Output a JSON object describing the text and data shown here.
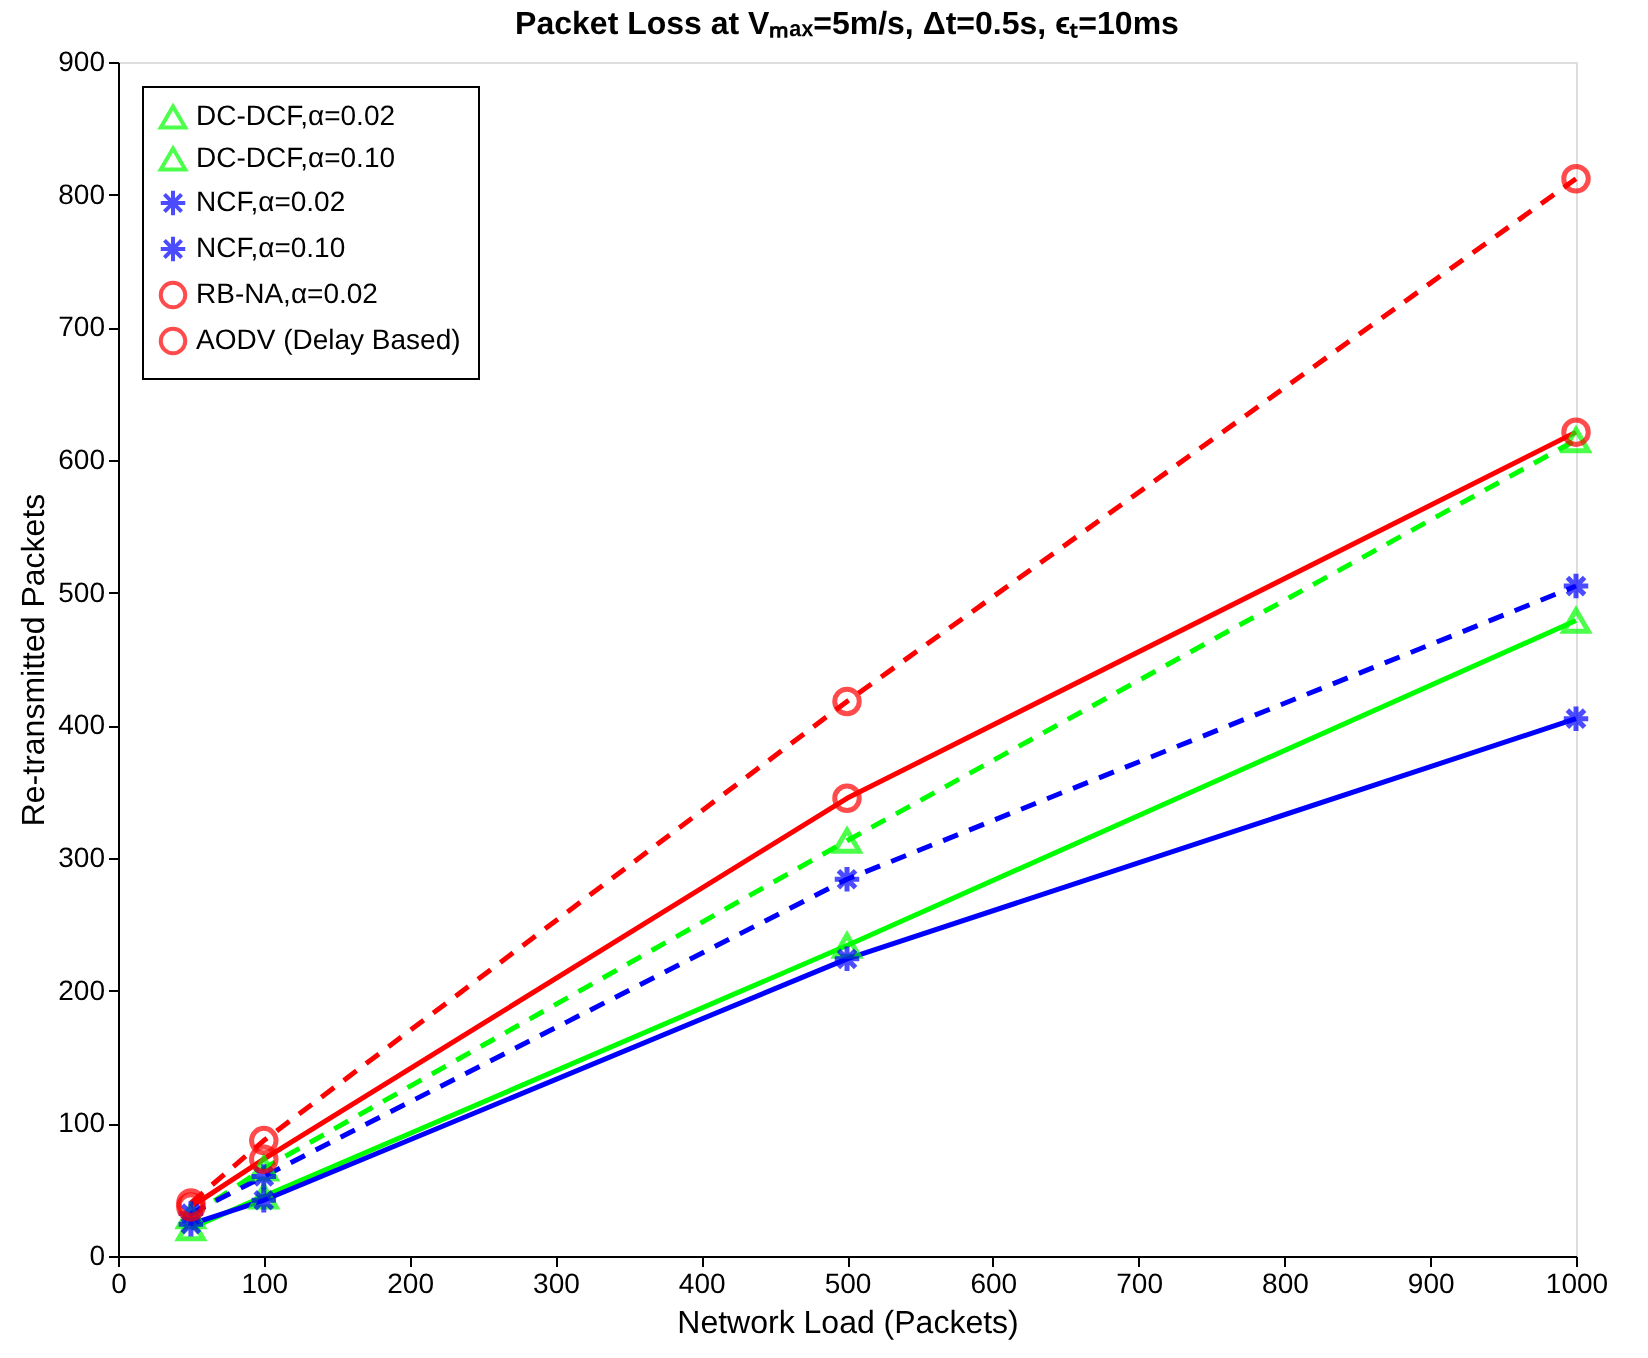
{
  "chart_data": {
    "type": "line",
    "title": "Packet Loss at Vₘₐₓ=5m/s,  Δt=0.5s,  ϵₜ=10ms",
    "xlabel": "Network Load (Packets)",
    "ylabel": "Re-transmitted Packets",
    "x": [
      50,
      100,
      500,
      1000
    ],
    "series": [
      {
        "name": "DC-DCF,α=0.02",
        "color": "#00ff00",
        "line_style": "solid",
        "marker": "triangle",
        "values": [
          21,
          45,
          234,
          479
        ]
      },
      {
        "name": "DC-DCF,α=0.10",
        "color": "#00ff00",
        "line_style": "dashed",
        "marker": "triangle",
        "values": [
          30,
          66,
          313,
          615
        ]
      },
      {
        "name": "NCF,α=0.02",
        "color": "#0000ff",
        "line_style": "solid",
        "marker": "cross",
        "values": [
          24,
          42,
          224,
          405
        ]
      },
      {
        "name": "NCF,α=0.10",
        "color": "#0000ff",
        "line_style": "dashed",
        "marker": "cross",
        "values": [
          32,
          60,
          284,
          505
        ]
      },
      {
        "name": "RB-NA,α=0.02",
        "color": "#ff0000",
        "line_style": "solid",
        "marker": "circle",
        "values": [
          37,
          73,
          345,
          621
        ]
      },
      {
        "name": "AODV (Delay Based)",
        "color": "#ff0000",
        "line_style": "dashed",
        "marker": "circle",
        "values": [
          40,
          87,
          418,
          812
        ]
      }
    ],
    "xlim": [
      0,
      1000
    ],
    "xticks": [
      0,
      100,
      200,
      300,
      400,
      500,
      600,
      700,
      800,
      900,
      1000
    ],
    "ylim": [
      0,
      900
    ],
    "yticks": [
      0,
      100,
      200,
      300,
      400,
      500,
      600,
      700,
      800,
      900
    ],
    "grid": false,
    "legend": "top left"
  }
}
